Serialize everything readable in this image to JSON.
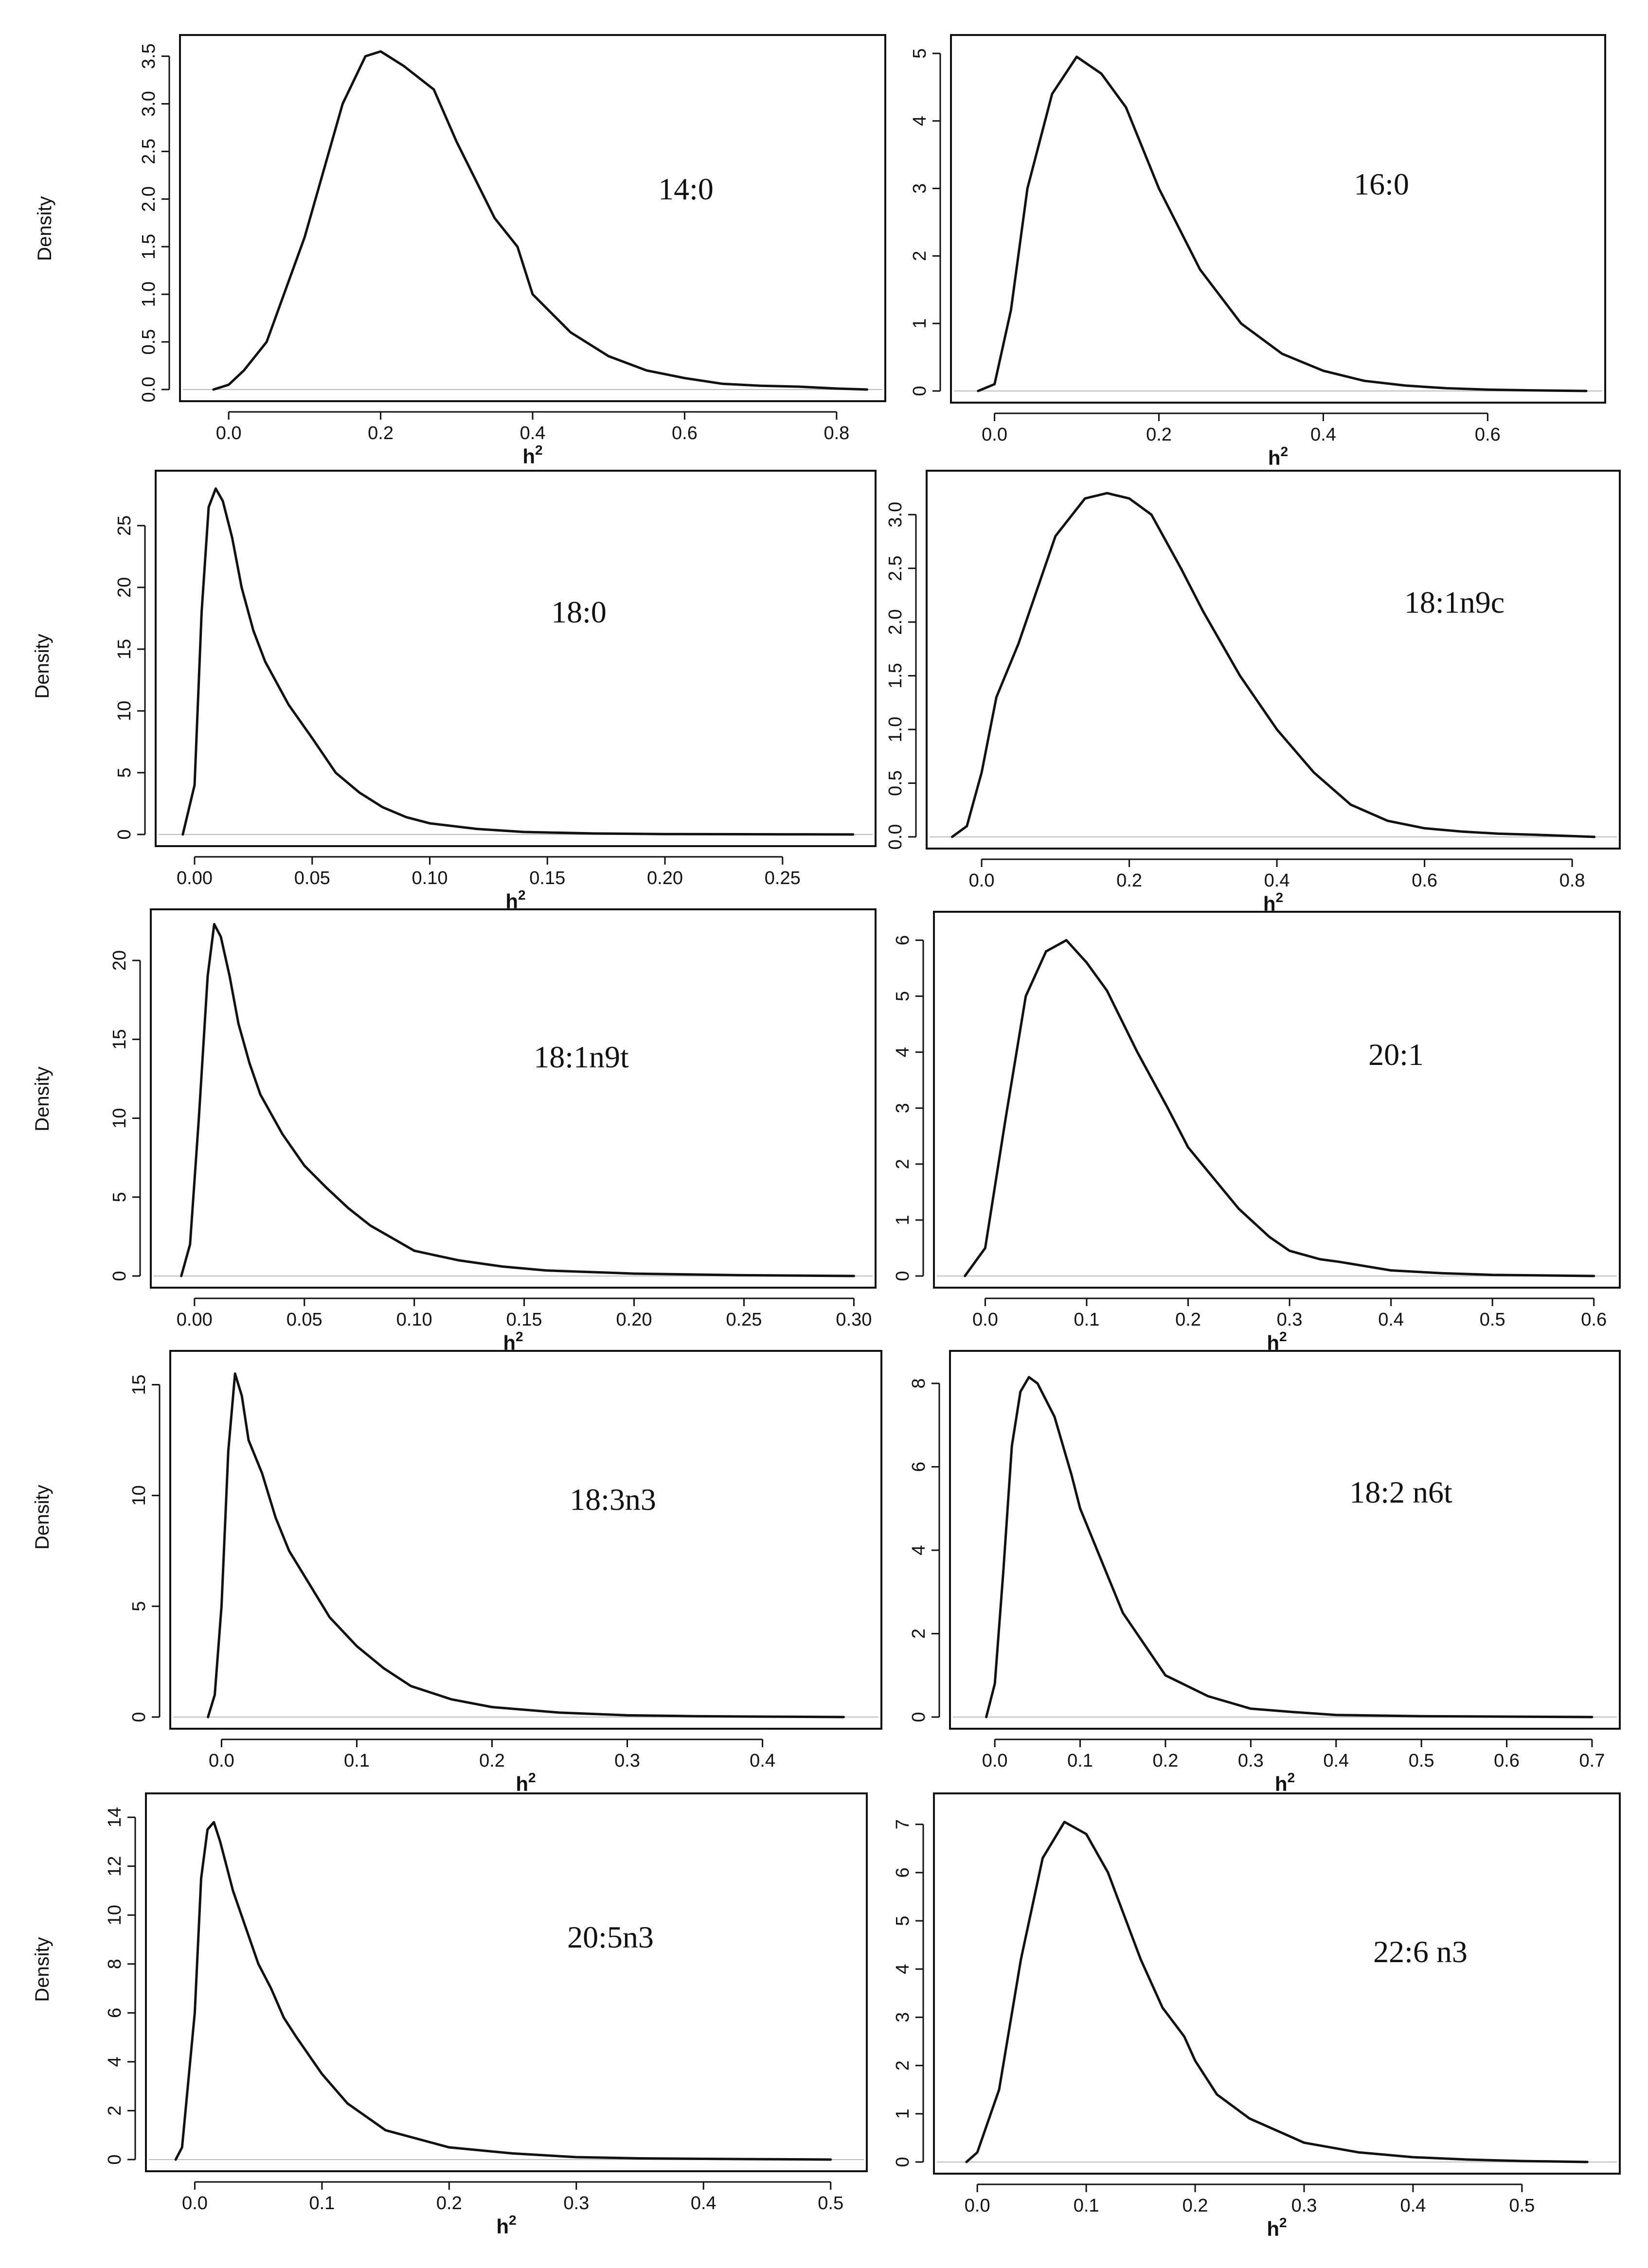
{
  "figure": {
    "ylabel_text": "Density"
  },
  "chart_data": [
    {
      "type": "line",
      "label": "14:0",
      "xlabel": "h",
      "xlabel_sup": "2",
      "ylabel": "Density",
      "xlim": [
        -0.05,
        0.85
      ],
      "ylim": [
        0,
        3.6
      ],
      "xticks": [
        0.0,
        0.2,
        0.4,
        0.6,
        0.8
      ],
      "yticks": [
        0.0,
        0.5,
        1.0,
        1.5,
        2.0,
        2.5,
        3.0,
        3.5
      ],
      "xtick_labels": [
        "0.0",
        "0.2",
        "0.4",
        "0.6",
        "0.8"
      ],
      "ytick_labels": [
        "0.0",
        "0.5",
        "1.0",
        "1.5",
        "2.0",
        "2.5",
        "3.0",
        "3.5"
      ],
      "x": [
        -0.02,
        0.0,
        0.02,
        0.05,
        0.1,
        0.15,
        0.18,
        0.2,
        0.23,
        0.27,
        0.3,
        0.35,
        0.38,
        0.4,
        0.45,
        0.5,
        0.55,
        0.6,
        0.65,
        0.7,
        0.75,
        0.8,
        0.84
      ],
      "y": [
        0.0,
        0.05,
        0.2,
        0.5,
        1.6,
        3.0,
        3.5,
        3.55,
        3.4,
        3.15,
        2.6,
        1.8,
        1.5,
        1.0,
        0.6,
        0.35,
        0.2,
        0.12,
        0.06,
        0.04,
        0.03,
        0.01,
        0.0
      ]
    },
    {
      "type": "line",
      "label": "16:0",
      "xlabel": "h",
      "xlabel_sup": "2",
      "ylabel": "",
      "xlim": [
        -0.04,
        0.73
      ],
      "ylim": [
        0,
        5.1
      ],
      "xticks": [
        0.0,
        0.2,
        0.4,
        0.6
      ],
      "yticks": [
        0,
        1,
        2,
        3,
        4,
        5
      ],
      "xtick_labels": [
        "0.0",
        "0.2",
        "0.4",
        "0.6"
      ],
      "ytick_labels": [
        "0",
        "1",
        "2",
        "3",
        "4",
        "5"
      ],
      "x": [
        -0.02,
        0.0,
        0.02,
        0.04,
        0.07,
        0.1,
        0.13,
        0.16,
        0.2,
        0.25,
        0.3,
        0.35,
        0.4,
        0.45,
        0.5,
        0.55,
        0.6,
        0.65,
        0.72
      ],
      "y": [
        0.0,
        0.1,
        1.2,
        3.0,
        4.4,
        4.95,
        4.7,
        4.2,
        3.0,
        1.8,
        1.0,
        0.55,
        0.3,
        0.15,
        0.08,
        0.04,
        0.02,
        0.01,
        0.0
      ]
    },
    {
      "type": "line",
      "label": "18:0",
      "xlabel": "h",
      "xlabel_sup": "2",
      "ylabel": "Density",
      "xlim": [
        -0.012,
        0.285
      ],
      "ylim": [
        0,
        28.5
      ],
      "xticks": [
        0.0,
        0.05,
        0.1,
        0.15,
        0.2,
        0.25
      ],
      "yticks": [
        0,
        5,
        10,
        15,
        20,
        25
      ],
      "xtick_labels": [
        "0.00",
        "0.05",
        "0.10",
        "0.15",
        "0.20",
        "0.25"
      ],
      "ytick_labels": [
        "0",
        "5",
        "10",
        "15",
        "20",
        "25"
      ],
      "x": [
        -0.005,
        0.0,
        0.003,
        0.006,
        0.009,
        0.012,
        0.016,
        0.02,
        0.025,
        0.03,
        0.04,
        0.05,
        0.06,
        0.07,
        0.08,
        0.09,
        0.1,
        0.12,
        0.14,
        0.17,
        0.2,
        0.25,
        0.28
      ],
      "y": [
        0.0,
        4.0,
        18.0,
        26.5,
        28.0,
        27.0,
        24.0,
        20.0,
        16.5,
        14.0,
        10.5,
        7.8,
        5.0,
        3.4,
        2.2,
        1.4,
        0.9,
        0.45,
        0.2,
        0.08,
        0.03,
        0.01,
        0.0
      ]
    },
    {
      "type": "line",
      "label": "18:1n9c",
      "xlabel": "h",
      "xlabel_sup": "2",
      "ylabel": "",
      "xlim": [
        -0.06,
        0.85
      ],
      "ylim": [
        0,
        3.3
      ],
      "xticks": [
        0.0,
        0.2,
        0.4,
        0.6,
        0.8
      ],
      "yticks": [
        0.0,
        0.5,
        1.0,
        1.5,
        2.0,
        2.5,
        3.0
      ],
      "xtick_labels": [
        "0.0",
        "0.2",
        "0.4",
        "0.6",
        "0.8"
      ],
      "ytick_labels": [
        "0.0",
        "0.5",
        "1.0",
        "1.5",
        "2.0",
        "2.5",
        "3.0"
      ],
      "x": [
        -0.04,
        -0.02,
        0.0,
        0.02,
        0.05,
        0.1,
        0.14,
        0.17,
        0.2,
        0.23,
        0.27,
        0.3,
        0.35,
        0.4,
        0.45,
        0.5,
        0.55,
        0.6,
        0.65,
        0.7,
        0.75,
        0.83
      ],
      "y": [
        0.0,
        0.1,
        0.6,
        1.3,
        1.8,
        2.8,
        3.15,
        3.2,
        3.15,
        3.0,
        2.5,
        2.1,
        1.5,
        1.0,
        0.6,
        0.3,
        0.15,
        0.08,
        0.05,
        0.03,
        0.02,
        0.0
      ]
    },
    {
      "type": "line",
      "label": "18:1n9t",
      "xlabel": "h",
      "xlabel_sup": "2",
      "ylabel": "Density",
      "xlim": [
        -0.015,
        0.305
      ],
      "ylim": [
        0,
        22.5
      ],
      "xticks": [
        0.0,
        0.05,
        0.1,
        0.15,
        0.2,
        0.25,
        0.3
      ],
      "yticks": [
        0,
        5,
        10,
        15,
        20
      ],
      "xtick_labels": [
        "0.00",
        "0.05",
        "0.10",
        "0.15",
        "0.20",
        "0.25",
        "0.30"
      ],
      "ytick_labels": [
        "0",
        "5",
        "10",
        "15",
        "20"
      ],
      "x": [
        -0.006,
        -0.002,
        0.002,
        0.006,
        0.009,
        0.012,
        0.016,
        0.02,
        0.025,
        0.03,
        0.04,
        0.05,
        0.06,
        0.07,
        0.08,
        0.09,
        0.1,
        0.12,
        0.14,
        0.16,
        0.2,
        0.25,
        0.3
      ],
      "y": [
        0.0,
        2.0,
        10.0,
        19.0,
        22.3,
        21.5,
        19.0,
        16.0,
        13.5,
        11.5,
        9.0,
        7.0,
        5.6,
        4.3,
        3.2,
        2.4,
        1.6,
        1.0,
        0.6,
        0.35,
        0.15,
        0.05,
        0.0
      ]
    },
    {
      "type": "line",
      "label": "20:1",
      "xlabel": "h",
      "xlabel_sup": "2",
      "ylabel": "",
      "xlim": [
        -0.04,
        0.615
      ],
      "ylim": [
        0,
        6.3
      ],
      "xticks": [
        0.0,
        0.1,
        0.2,
        0.3,
        0.4,
        0.5,
        0.6
      ],
      "yticks": [
        0,
        1,
        2,
        3,
        4,
        5,
        6
      ],
      "xtick_labels": [
        "0.0",
        "0.1",
        "0.2",
        "0.3",
        "0.4",
        "0.5",
        "0.6"
      ],
      "ytick_labels": [
        "0",
        "1",
        "2",
        "3",
        "4",
        "5",
        "6"
      ],
      "x": [
        -0.02,
        0.0,
        0.02,
        0.04,
        0.06,
        0.08,
        0.1,
        0.12,
        0.15,
        0.18,
        0.2,
        0.25,
        0.28,
        0.3,
        0.33,
        0.35,
        0.4,
        0.45,
        0.5,
        0.6
      ],
      "y": [
        0.0,
        0.5,
        2.8,
        5.0,
        5.8,
        6.0,
        5.6,
        5.1,
        4.0,
        3.0,
        2.3,
        1.2,
        0.7,
        0.45,
        0.3,
        0.25,
        0.1,
        0.05,
        0.02,
        0.0
      ]
    },
    {
      "type": "line",
      "label": "18:3n3",
      "xlabel": "h",
      "xlabel_sup": "2",
      "ylabel": "Density",
      "xlim": [
        -0.03,
        0.48
      ],
      "ylim": [
        0,
        16
      ],
      "xticks": [
        0.0,
        0.1,
        0.2,
        0.3,
        0.4
      ],
      "yticks": [
        0,
        5,
        10,
        15
      ],
      "xtick_labels": [
        "0.0",
        "0.1",
        "0.2",
        "0.3",
        "0.4"
      ],
      "ytick_labels": [
        "0",
        "5",
        "10",
        "15"
      ],
      "x": [
        -0.01,
        -0.005,
        0.0,
        0.005,
        0.01,
        0.015,
        0.02,
        0.03,
        0.04,
        0.05,
        0.06,
        0.08,
        0.1,
        0.12,
        0.14,
        0.17,
        0.2,
        0.25,
        0.3,
        0.35,
        0.4,
        0.46
      ],
      "y": [
        0.0,
        1.0,
        5.0,
        12.0,
        15.5,
        14.5,
        12.5,
        11.0,
        9.0,
        7.5,
        6.5,
        4.5,
        3.2,
        2.2,
        1.4,
        0.8,
        0.45,
        0.2,
        0.08,
        0.04,
        0.02,
        0.0
      ]
    },
    {
      "type": "line",
      "label": "18:2 n6t",
      "xlabel": "h",
      "xlabel_sup": "2",
      "ylabel": "",
      "xlim": [
        -0.04,
        0.72
      ],
      "ylim": [
        0,
        8.5
      ],
      "xticks": [
        0.0,
        0.1,
        0.2,
        0.3,
        0.4,
        0.5,
        0.6,
        0.7
      ],
      "yticks": [
        0,
        2,
        4,
        6,
        8
      ],
      "xtick_labels": [
        "0.0",
        "0.1",
        "0.2",
        "0.3",
        "0.4",
        "0.5",
        "0.6",
        "0.7"
      ],
      "ytick_labels": [
        "0",
        "2",
        "4",
        "6",
        "8"
      ],
      "x": [
        -0.01,
        0.0,
        0.01,
        0.02,
        0.03,
        0.04,
        0.05,
        0.07,
        0.09,
        0.1,
        0.12,
        0.15,
        0.2,
        0.25,
        0.3,
        0.35,
        0.4,
        0.5,
        0.6,
        0.7
      ],
      "y": [
        0.0,
        0.8,
        3.5,
        6.5,
        7.8,
        8.15,
        8.0,
        7.2,
        5.8,
        5.0,
        4.0,
        2.5,
        1.0,
        0.5,
        0.2,
        0.12,
        0.05,
        0.02,
        0.01,
        0.0
      ]
    },
    {
      "type": "line",
      "label": "20:5n3",
      "xlabel": "h",
      "xlabel_sup": "2",
      "ylabel": "Density",
      "xlim": [
        -0.03,
        0.52
      ],
      "ylim": [
        0,
        14.5
      ],
      "xticks": [
        0.0,
        0.1,
        0.2,
        0.3,
        0.4,
        0.5
      ],
      "yticks": [
        0,
        2,
        4,
        6,
        8,
        10,
        12,
        14
      ],
      "xtick_labels": [
        "0.0",
        "0.1",
        "0.2",
        "0.3",
        "0.4",
        "0.5"
      ],
      "ytick_labels": [
        "0",
        "2",
        "4",
        "6",
        "8",
        "10",
        "12",
        "14"
      ],
      "x": [
        -0.015,
        -0.01,
        0.0,
        0.005,
        0.01,
        0.015,
        0.02,
        0.03,
        0.04,
        0.05,
        0.06,
        0.07,
        0.08,
        0.1,
        0.12,
        0.15,
        0.2,
        0.25,
        0.3,
        0.35,
        0.4,
        0.5
      ],
      "y": [
        0.0,
        0.5,
        6.0,
        11.5,
        13.5,
        13.8,
        13.0,
        11.0,
        9.5,
        8.0,
        7.0,
        5.8,
        5.0,
        3.5,
        2.3,
        1.2,
        0.5,
        0.25,
        0.1,
        0.05,
        0.03,
        0.0
      ]
    },
    {
      "type": "line",
      "label": "22:6 n3",
      "xlabel": "h",
      "xlabel_sup": "2",
      "ylabel": "",
      "xlim": [
        -0.03,
        0.58
      ],
      "ylim": [
        0,
        7.4
      ],
      "xticks": [
        0.0,
        0.1,
        0.2,
        0.3,
        0.4,
        0.5
      ],
      "yticks": [
        0,
        1,
        2,
        3,
        4,
        5,
        6,
        7
      ],
      "xtick_labels": [
        "0.0",
        "0.1",
        "0.2",
        "0.3",
        "0.4",
        "0.5"
      ],
      "ytick_labels": [
        "0",
        "1",
        "2",
        "3",
        "4",
        "5",
        "6",
        "7"
      ],
      "x": [
        -0.01,
        0.0,
        0.02,
        0.04,
        0.06,
        0.08,
        0.1,
        0.12,
        0.15,
        0.17,
        0.19,
        0.2,
        0.22,
        0.25,
        0.3,
        0.35,
        0.4,
        0.45,
        0.5,
        0.56
      ],
      "y": [
        0.0,
        0.2,
        1.5,
        4.2,
        6.3,
        7.05,
        6.8,
        6.0,
        4.2,
        3.2,
        2.6,
        2.1,
        1.4,
        0.9,
        0.4,
        0.2,
        0.1,
        0.05,
        0.02,
        0.0
      ]
    }
  ]
}
